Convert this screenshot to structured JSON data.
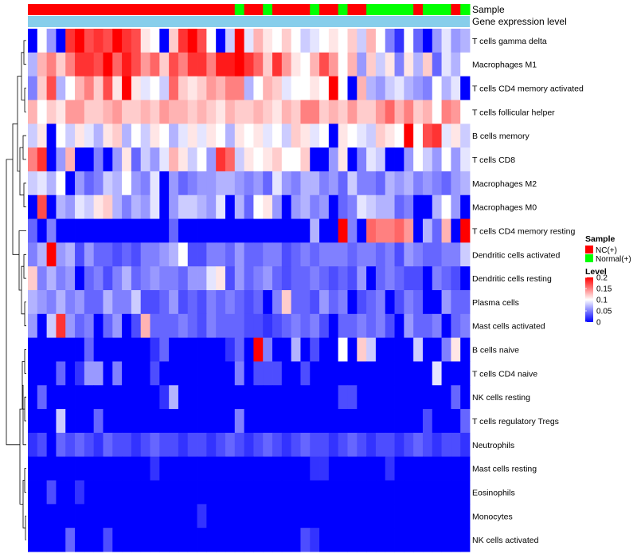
{
  "chart_data": {
    "type": "heatmap",
    "title": "",
    "row_labels": [
      "T cells gamma delta",
      "Macrophages M1",
      "T cells CD4 memory activated",
      "T cells follicular helper",
      "B cells memory",
      "T cells CD8",
      "Macrophages M2",
      "Macrophages M0",
      "T cells CD4 memory resting",
      "Dendritic cells activated",
      "Dendritic cells resting",
      "Plasma cells",
      "Mast cells activated",
      "B cells naive",
      "T cells CD4 naive",
      "NK cells resting",
      "T cells regulatory  Tregs",
      "Neutrophils",
      "Mast cells resting",
      "Eosinophils",
      "Monocytes",
      "NK cells activated"
    ],
    "annotation_tracks": [
      "Sample",
      "Gene expression level"
    ],
    "sample_groups": [
      "NC",
      "NC",
      "NC",
      "NC",
      "NC",
      "NC",
      "NC",
      "NC",
      "NC",
      "NC",
      "NC",
      "NC",
      "NC",
      "NC",
      "NC",
      "NC",
      "NC",
      "NC",
      "NC",
      "NC",
      "NC",
      "NC",
      "Normal",
      "NC",
      "NC",
      "Normal",
      "NC",
      "NC",
      "NC",
      "NC",
      "Normal",
      "NC",
      "NC",
      "Normal",
      "NC",
      "NC",
      "Normal",
      "Normal",
      "Normal",
      "Normal",
      "Normal",
      "NC",
      "Normal",
      "Normal",
      "Normal",
      "NC",
      "Normal"
    ],
    "levels": [
      [
        0.0,
        0.1,
        0.06,
        0.0,
        0.18,
        0.2,
        0.17,
        0.18,
        0.17,
        0.2,
        0.18,
        0.17,
        0.11,
        0.1,
        0.0,
        0.12,
        0.18,
        0.2,
        0.17,
        0.1,
        0.0,
        0.08,
        0.2,
        0.09,
        0.13,
        0.11,
        0.1,
        0.12,
        0.1,
        0.08,
        0.09,
        0.1,
        0.11,
        0.1,
        0.12,
        0.08,
        0.13,
        0.1,
        0.05,
        0.02,
        0.1,
        0.04,
        0.0,
        0.06,
        0.09,
        0.06,
        0.07
      ],
      [
        0.07,
        0.13,
        0.15,
        0.12,
        0.15,
        0.18,
        0.18,
        0.17,
        0.2,
        0.16,
        0.19,
        0.17,
        0.14,
        0.16,
        0.12,
        0.17,
        0.15,
        0.18,
        0.18,
        0.15,
        0.19,
        0.19,
        0.2,
        0.18,
        0.16,
        0.12,
        0.18,
        0.14,
        0.11,
        0.1,
        0.13,
        0.17,
        0.14,
        0.1,
        0.13,
        0.06,
        0.12,
        0.08,
        0.11,
        0.05,
        0.11,
        0.07,
        0.12,
        0.04,
        0.09,
        0.07,
        0.1
      ],
      [
        0.05,
        0.12,
        0.17,
        0.07,
        0.1,
        0.13,
        0.15,
        0.12,
        0.17,
        0.11,
        0.22,
        0.11,
        0.09,
        0.1,
        0.08,
        0.16,
        0.12,
        0.11,
        0.12,
        0.14,
        0.13,
        0.15,
        0.15,
        0.07,
        0.1,
        0.13,
        0.12,
        0.09,
        0.1,
        0.1,
        0.11,
        0.1,
        0.2,
        0.1,
        0.0,
        0.13,
        0.07,
        0.06,
        0.08,
        0.09,
        0.07,
        0.06,
        0.05,
        0.1,
        0.07,
        0.09,
        0.0
      ],
      [
        0.13,
        0.1,
        0.12,
        0.11,
        0.14,
        0.14,
        0.12,
        0.12,
        0.13,
        0.14,
        0.12,
        0.12,
        0.13,
        0.12,
        0.14,
        0.13,
        0.13,
        0.12,
        0.13,
        0.12,
        0.11,
        0.13,
        0.12,
        0.12,
        0.13,
        0.12,
        0.11,
        0.13,
        0.12,
        0.15,
        0.15,
        0.12,
        0.13,
        0.12,
        0.14,
        0.12,
        0.12,
        0.14,
        0.16,
        0.13,
        0.15,
        0.12,
        0.13,
        0.1,
        0.15,
        0.14,
        0.1
      ],
      [
        0.08,
        0.11,
        0.0,
        0.1,
        0.08,
        0.11,
        0.09,
        0.07,
        0.11,
        0.12,
        0.07,
        0.1,
        0.08,
        0.11,
        0.1,
        0.07,
        0.09,
        0.11,
        0.09,
        0.11,
        0.1,
        0.07,
        0.11,
        0.1,
        0.11,
        0.09,
        0.1,
        0.08,
        0.12,
        0.11,
        0.09,
        0.1,
        0.0,
        0.11,
        0.1,
        0.09,
        0.08,
        0.12,
        0.11,
        0.1,
        0.22,
        0.1,
        0.17,
        0.18,
        0.09,
        0.11,
        0.08
      ],
      [
        0.15,
        0.18,
        0.0,
        0.06,
        0.13,
        0.0,
        0.0,
        0.05,
        0.0,
        0.06,
        0.11,
        0.04,
        0.08,
        0.06,
        0.09,
        0.13,
        0.11,
        0.08,
        0.1,
        0.06,
        0.18,
        0.16,
        0.08,
        0.11,
        0.1,
        0.11,
        0.12,
        0.1,
        0.1,
        0.12,
        0.0,
        0.0,
        0.06,
        0.11,
        0.0,
        0.05,
        0.09,
        0.08,
        0.0,
        0.0,
        0.06,
        0.1,
        0.08,
        0.06,
        0.1,
        0.06,
        0.09
      ],
      [
        0.08,
        0.09,
        0.07,
        0.1,
        0.0,
        0.06,
        0.04,
        0.05,
        0.08,
        0.07,
        0.1,
        0.06,
        0.05,
        0.09,
        0.0,
        0.06,
        0.04,
        0.05,
        0.06,
        0.06,
        0.07,
        0.07,
        0.06,
        0.05,
        0.06,
        0.04,
        0.09,
        0.06,
        0.05,
        0.07,
        0.07,
        0.05,
        0.06,
        0.04,
        0.08,
        0.05,
        0.05,
        0.04,
        0.07,
        0.06,
        0.07,
        0.05,
        0.06,
        0.05,
        0.04,
        0.06,
        0.07
      ],
      [
        0.0,
        0.17,
        0.0,
        0.07,
        0.06,
        0.09,
        0.08,
        0.11,
        0.12,
        0.07,
        0.05,
        0.07,
        0.06,
        0.09,
        0.0,
        0.06,
        0.08,
        0.08,
        0.07,
        0.06,
        0.09,
        0.0,
        0.07,
        0.04,
        0.1,
        0.11,
        0.06,
        0.0,
        0.06,
        0.07,
        0.05,
        0.06,
        0.0,
        0.04,
        0.05,
        0.09,
        0.08,
        0.07,
        0.07,
        0.04,
        0.05,
        0.0,
        0.0,
        0.07,
        0.1,
        0.06,
        0.0
      ],
      [
        0.04,
        0.0,
        0.05,
        0.0,
        0.0,
        0.0,
        0.0,
        0.0,
        0.0,
        0.0,
        0.0,
        0.0,
        0.0,
        0.0,
        0.0,
        0.04,
        0.0,
        0.0,
        0.0,
        0.0,
        0.0,
        0.0,
        0.0,
        0.0,
        0.0,
        0.0,
        0.0,
        0.0,
        0.0,
        0.0,
        0.07,
        0.0,
        0.0,
        0.2,
        0.05,
        0.0,
        0.16,
        0.15,
        0.15,
        0.16,
        0.14,
        0.0,
        0.07,
        0.04,
        0.13,
        0.0,
        0.2
      ],
      [
        0.05,
        0.07,
        0.21,
        0.06,
        0.07,
        0.03,
        0.06,
        0.04,
        0.04,
        0.03,
        0.04,
        0.03,
        0.05,
        0.05,
        0.06,
        0.07,
        0.1,
        0.03,
        0.03,
        0.05,
        0.05,
        0.04,
        0.06,
        0.04,
        0.04,
        0.05,
        0.05,
        0.03,
        0.04,
        0.05,
        0.04,
        0.05,
        0.05,
        0.05,
        0.04,
        0.05,
        0.05,
        0.04,
        0.05,
        0.03,
        0.06,
        0.05,
        0.04,
        0.04,
        0.05,
        0.05,
        0.08
      ],
      [
        0.12,
        0.05,
        0.07,
        0.05,
        0.06,
        0.0,
        0.04,
        0.05,
        0.03,
        0.05,
        0.07,
        0.04,
        0.05,
        0.06,
        0.05,
        0.05,
        0.04,
        0.06,
        0.06,
        0.09,
        0.11,
        0.03,
        0.06,
        0.04,
        0.05,
        0.06,
        0.04,
        0.03,
        0.04,
        0.04,
        0.05,
        0.04,
        0.03,
        0.04,
        0.03,
        0.06,
        0.0,
        0.04,
        0.05,
        0.04,
        0.03,
        0.03,
        0.0,
        0.05,
        0.04,
        0.03,
        0.0
      ],
      [
        0.07,
        0.06,
        0.05,
        0.07,
        0.05,
        0.06,
        0.04,
        0.04,
        0.07,
        0.05,
        0.05,
        0.08,
        0.03,
        0.03,
        0.04,
        0.06,
        0.03,
        0.04,
        0.03,
        0.05,
        0.04,
        0.05,
        0.04,
        0.03,
        0.04,
        0.0,
        0.05,
        0.12,
        0.04,
        0.04,
        0.03,
        0.06,
        0.04,
        0.05,
        0.0,
        0.03,
        0.04,
        0.05,
        0.0,
        0.03,
        0.05,
        0.04,
        0.0,
        0.0,
        0.06,
        0.04,
        0.04
      ],
      [
        0.06,
        0.0,
        0.08,
        0.18,
        0.06,
        0.04,
        0.05,
        0.0,
        0.04,
        0.06,
        0.0,
        0.03,
        0.13,
        0.04,
        0.04,
        0.04,
        0.05,
        0.04,
        0.03,
        0.05,
        0.04,
        0.04,
        0.04,
        0.03,
        0.03,
        0.02,
        0.03,
        0.04,
        0.05,
        0.04,
        0.05,
        0.03,
        0.0,
        0.04,
        0.04,
        0.05,
        0.04,
        0.05,
        0.03,
        0.0,
        0.06,
        0.04,
        0.04,
        0.05,
        0.0,
        0.04,
        0.05
      ],
      [
        0.0,
        0.0,
        0.0,
        0.0,
        0.0,
        0.0,
        0.04,
        0.0,
        0.0,
        0.0,
        0.0,
        0.0,
        0.0,
        0.02,
        0.04,
        0.0,
        0.0,
        0.0,
        0.0,
        0.0,
        0.0,
        0.02,
        0.04,
        0.0,
        0.22,
        0.05,
        0.0,
        0.0,
        0.07,
        0.0,
        0.03,
        0.0,
        0.0,
        0.1,
        0.0,
        0.12,
        0.08,
        0.0,
        0.0,
        0.0,
        0.0,
        0.08,
        0.0,
        0.0,
        0.05,
        0.11,
        0.0
      ],
      [
        0.0,
        0.0,
        0.0,
        0.04,
        0.0,
        0.02,
        0.06,
        0.06,
        0.0,
        0.05,
        0.0,
        0.0,
        0.0,
        0.03,
        0.0,
        0.0,
        0.0,
        0.0,
        0.0,
        0.0,
        0.0,
        0.0,
        0.05,
        0.0,
        0.03,
        0.03,
        0.03,
        0.0,
        0.0,
        0.03,
        0.0,
        0.0,
        0.0,
        0.0,
        0.0,
        0.0,
        0.0,
        0.0,
        0.0,
        0.0,
        0.0,
        0.0,
        0.0,
        0.09,
        0.0,
        0.0,
        0.0
      ],
      [
        0.0,
        0.04,
        0.0,
        0.0,
        0.0,
        0.0,
        0.0,
        0.0,
        0.0,
        0.0,
        0.0,
        0.0,
        0.0,
        0.0,
        0.02,
        0.07,
        0.0,
        0.0,
        0.0,
        0.0,
        0.0,
        0.0,
        0.0,
        0.0,
        0.0,
        0.0,
        0.0,
        0.0,
        0.0,
        0.0,
        0.0,
        0.0,
        0.0,
        0.03,
        0.03,
        0.0,
        0.0,
        0.0,
        0.0,
        0.0,
        0.0,
        0.0,
        0.0,
        0.0,
        0.0,
        0.04,
        0.0
      ],
      [
        0.0,
        0.0,
        0.0,
        0.08,
        0.0,
        0.0,
        0.0,
        0.04,
        0.0,
        0.0,
        0.0,
        0.0,
        0.0,
        0.0,
        0.0,
        0.0,
        0.0,
        0.0,
        0.0,
        0.0,
        0.0,
        0.0,
        0.05,
        0.0,
        0.0,
        0.0,
        0.0,
        0.0,
        0.0,
        0.0,
        0.0,
        0.0,
        0.0,
        0.0,
        0.0,
        0.0,
        0.0,
        0.0,
        0.0,
        0.0,
        0.0,
        0.0,
        0.03,
        0.0,
        0.0,
        0.0,
        0.04
      ],
      [
        0.02,
        0.03,
        0.0,
        0.04,
        0.03,
        0.04,
        0.03,
        0.02,
        0.04,
        0.03,
        0.03,
        0.02,
        0.03,
        0.04,
        0.03,
        0.03,
        0.02,
        0.03,
        0.03,
        0.02,
        0.03,
        0.04,
        0.03,
        0.02,
        0.03,
        0.04,
        0.03,
        0.02,
        0.03,
        0.04,
        0.03,
        0.03,
        0.02,
        0.03,
        0.04,
        0.03,
        0.02,
        0.03,
        0.03,
        0.02,
        0.03,
        0.04,
        0.03,
        0.02,
        0.03,
        0.03,
        0.02
      ],
      [
        0.0,
        0.0,
        0.0,
        0.0,
        0.0,
        0.0,
        0.0,
        0.0,
        0.0,
        0.0,
        0.0,
        0.0,
        0.0,
        0.02,
        0.0,
        0.0,
        0.0,
        0.0,
        0.0,
        0.0,
        0.0,
        0.0,
        0.0,
        0.0,
        0.0,
        0.0,
        0.0,
        0.0,
        0.0,
        0.0,
        0.02,
        0.02,
        0.0,
        0.0,
        0.0,
        0.0,
        0.0,
        0.0,
        0.02,
        0.0,
        0.0,
        0.0,
        0.0,
        0.0,
        0.0,
        0.0,
        0.0
      ],
      [
        0.0,
        0.0,
        0.03,
        0.0,
        0.0,
        0.02,
        0.0,
        0.0,
        0.0,
        0.0,
        0.0,
        0.0,
        0.0,
        0.0,
        0.0,
        0.0,
        0.0,
        0.0,
        0.0,
        0.0,
        0.0,
        0.0,
        0.0,
        0.0,
        0.0,
        0.0,
        0.0,
        0.0,
        0.0,
        0.0,
        0.0,
        0.0,
        0.0,
        0.0,
        0.0,
        0.0,
        0.0,
        0.0,
        0.0,
        0.0,
        0.0,
        0.0,
        0.0,
        0.0,
        0.0,
        0.0,
        0.0
      ],
      [
        0.0,
        0.0,
        0.0,
        0.0,
        0.0,
        0.0,
        0.0,
        0.0,
        0.0,
        0.0,
        0.0,
        0.0,
        0.0,
        0.0,
        0.0,
        0.0,
        0.0,
        0.0,
        0.02,
        0.0,
        0.0,
        0.0,
        0.0,
        0.0,
        0.0,
        0.0,
        0.0,
        0.0,
        0.0,
        0.0,
        0.0,
        0.0,
        0.0,
        0.0,
        0.0,
        0.0,
        0.0,
        0.0,
        0.0,
        0.0,
        0.0,
        0.0,
        0.0,
        0.0,
        0.0,
        0.0,
        0.0
      ],
      [
        0.0,
        0.0,
        0.0,
        0.0,
        0.04,
        0.0,
        0.0,
        0.0,
        0.03,
        0.0,
        0.0,
        0.0,
        0.0,
        0.0,
        0.0,
        0.0,
        0.0,
        0.0,
        0.0,
        0.0,
        0.0,
        0.0,
        0.0,
        0.0,
        0.0,
        0.0,
        0.0,
        0.0,
        0.0,
        0.03,
        0.02,
        0.0,
        0.0,
        0.0,
        0.0,
        0.0,
        0.0,
        0.0,
        0.0,
        0.0,
        0.0,
        0.0,
        0.0,
        0.0,
        0.0,
        0.0,
        0.0
      ]
    ],
    "color_scale": {
      "min_color": "#0000ff",
      "mid_color": "#ffffff",
      "max_color": "#ff0000",
      "min": 0,
      "mid": 0.1,
      "max": 0.2
    },
    "legend": {
      "sample_title": "Sample",
      "sample_items": [
        {
          "label": "NC(+)",
          "color": "#ff0000",
          "key": "NC"
        },
        {
          "label": "Normal(+)",
          "color": "#00ff00",
          "key": "Normal"
        }
      ],
      "level_title": "Level",
      "level_ticks": [
        {
          "label": "0.2",
          "value": 0.2
        },
        {
          "label": "0.15",
          "value": 0.15
        },
        {
          "label": "0.1",
          "value": 0.1
        },
        {
          "label": "0.05",
          "value": 0.05
        },
        {
          "label": "0",
          "value": 0
        }
      ],
      "placement": "right"
    },
    "gene_expression_color": "#87ceeb"
  }
}
